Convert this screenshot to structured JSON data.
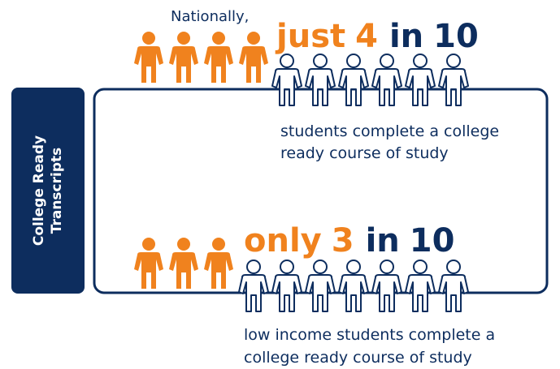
{
  "side_label": [
    "College Ready",
    "Transcripts"
  ],
  "stats": [
    {
      "intro": "Nationally,",
      "qualifier": "just",
      "count": 4,
      "connector": "in",
      "total": 10,
      "caption": [
        "students complete a college",
        "ready course of study"
      ]
    },
    {
      "qualifier": "only",
      "count": 3,
      "connector": "in",
      "total": 10,
      "caption": [
        "low income students complete a",
        "college ready course of study"
      ]
    }
  ]
}
